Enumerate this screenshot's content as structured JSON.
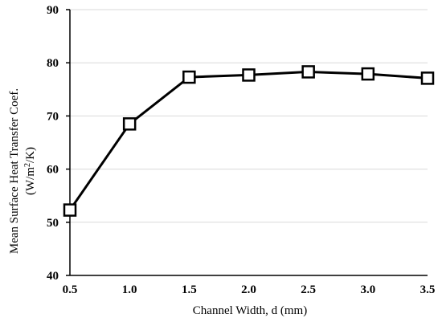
{
  "chart_data": {
    "type": "line",
    "title": "",
    "xlabel": "Channel Width, d (mm)",
    "ylabel_line1": "Mean Surface Heat Transfer Coef.",
    "ylabel_line2_prefix": "(W/m",
    "ylabel_line2_sup": "2",
    "ylabel_line2_suffix": "/K)",
    "xlim": [
      0.5,
      3.5
    ],
    "ylim": [
      40,
      90
    ],
    "x_ticks": [
      "0.5",
      "1.0",
      "1.5",
      "2.0",
      "2.5",
      "3.0",
      "3.5"
    ],
    "y_ticks": [
      "40",
      "50",
      "60",
      "70",
      "80",
      "90"
    ],
    "grid": "horizontal",
    "marker": "square",
    "series": [
      {
        "x": [
          0.5,
          1.0,
          1.5,
          2.0,
          2.5,
          3.0,
          3.5
        ],
        "y": [
          52.3,
          68.5,
          77.3,
          77.7,
          78.3,
          77.9,
          77.1
        ]
      }
    ],
    "colors": {
      "line": "#000000",
      "grid": "#d9d9d9",
      "axis": "#000000"
    }
  }
}
